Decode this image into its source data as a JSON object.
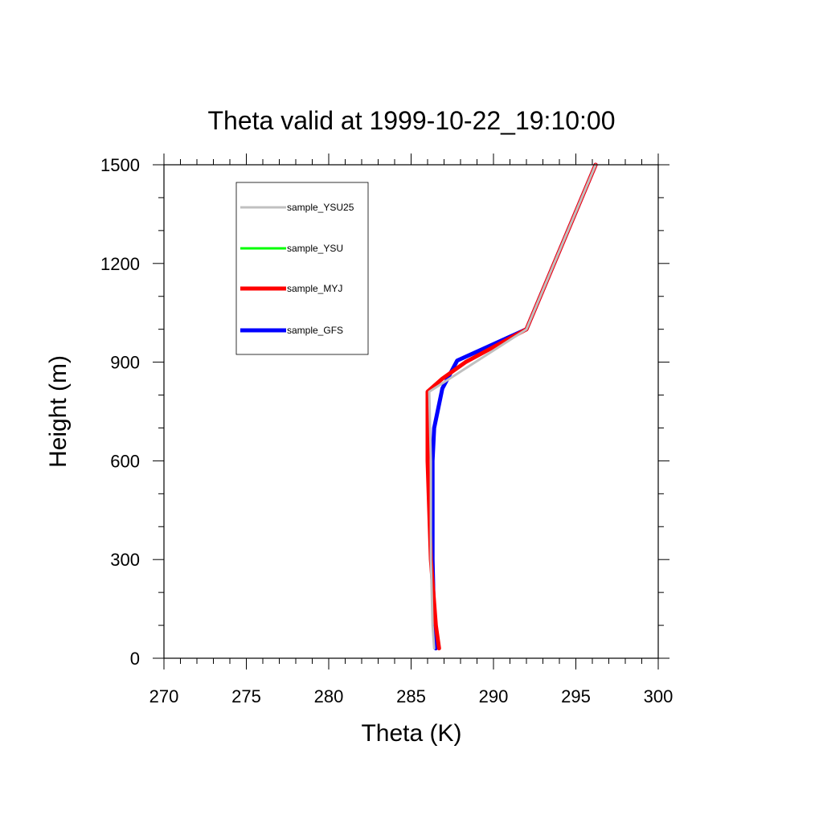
{
  "chart_data": {
    "type": "line",
    "title": "Theta valid at 1999-10-22_19:10:00",
    "xlabel": "Theta (K)",
    "ylabel": "Height (m)",
    "xlim": [
      270,
      300
    ],
    "ylim": [
      0,
      1500
    ],
    "xticks": [
      "270",
      "275",
      "280",
      "285",
      "290",
      "295",
      "300"
    ],
    "yticks": [
      "0",
      "300",
      "600",
      "900",
      "1200",
      "1500"
    ],
    "legend_position": "top-left",
    "grid": false,
    "series": [
      {
        "name": "sample_YSU25",
        "color": "#c0c0c0",
        "x": [
          286.4,
          286.3,
          286.2,
          286.2,
          286.1,
          292.0,
          296.2
        ],
        "y": [
          30,
          100,
          300,
          600,
          810,
          1000,
          1500
        ]
      },
      {
        "name": "sample_YSU",
        "color": "#00ff00",
        "x": [
          286.4,
          286.3,
          286.2,
          286.2,
          286.1,
          292.0,
          296.2
        ],
        "y": [
          30,
          100,
          300,
          600,
          810,
          1000,
          1500
        ]
      },
      {
        "name": "sample_MYJ",
        "color": "#ff0000",
        "x": [
          286.7,
          286.5,
          286.2,
          286.0,
          286.0,
          286.9,
          288.3,
          292.0,
          296.2
        ],
        "y": [
          30,
          100,
          300,
          600,
          810,
          850,
          900,
          1000,
          1500
        ]
      },
      {
        "name": "sample_GFS",
        "color": "#0000ff",
        "x": [
          286.5,
          286.4,
          286.3,
          286.3,
          286.4,
          286.9,
          287.8,
          292.0,
          296.2
        ],
        "y": [
          30,
          100,
          300,
          600,
          700,
          820,
          905,
          1000,
          1500
        ]
      }
    ]
  }
}
